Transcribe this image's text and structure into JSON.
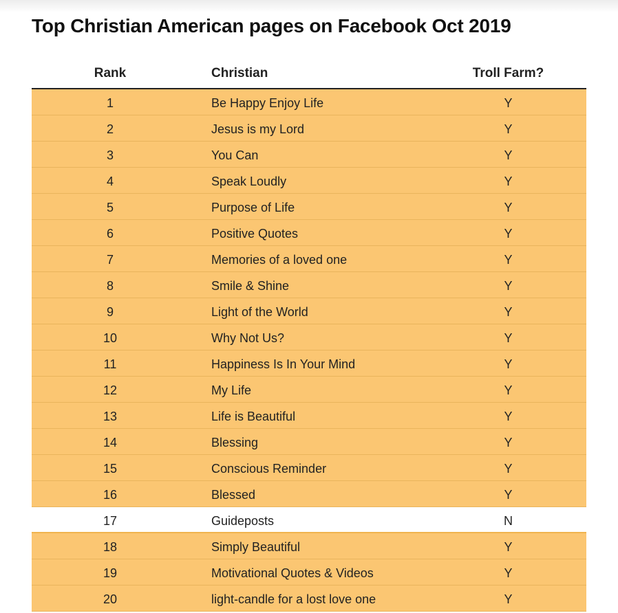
{
  "title": "Top Christian American pages on Facebook Oct 2019",
  "table": {
    "headers": {
      "rank": "Rank",
      "christian": "Christian",
      "troll_farm": "Troll Farm?"
    },
    "rows": [
      {
        "rank": "1",
        "name": "Be Happy Enjoy Life",
        "troll": "Y"
      },
      {
        "rank": "2",
        "name": "Jesus is my Lord",
        "troll": "Y"
      },
      {
        "rank": "3",
        "name": "You Can",
        "troll": "Y"
      },
      {
        "rank": "4",
        "name": "Speak Loudly",
        "troll": "Y"
      },
      {
        "rank": "5",
        "name": "Purpose of Life",
        "troll": "Y"
      },
      {
        "rank": "6",
        "name": "Positive Quotes",
        "troll": "Y"
      },
      {
        "rank": "7",
        "name": "Memories of a loved one",
        "troll": "Y"
      },
      {
        "rank": "8",
        "name": "Smile & Shine",
        "troll": "Y"
      },
      {
        "rank": "9",
        "name": "Light of the World",
        "troll": "Y"
      },
      {
        "rank": "10",
        "name": "Why Not Us?",
        "troll": "Y"
      },
      {
        "rank": "11",
        "name": "Happiness Is In Your Mind",
        "troll": "Y"
      },
      {
        "rank": "12",
        "name": "My Life",
        "troll": "Y"
      },
      {
        "rank": "13",
        "name": "Life is Beautiful",
        "troll": "Y"
      },
      {
        "rank": "14",
        "name": "Blessing",
        "troll": "Y"
      },
      {
        "rank": "15",
        "name": "Conscious Reminder",
        "troll": "Y"
      },
      {
        "rank": "16",
        "name": "Blessed",
        "troll": "Y"
      },
      {
        "rank": "17",
        "name": "Guideposts",
        "troll": "N"
      },
      {
        "rank": "18",
        "name": "Simply Beautiful",
        "troll": "Y"
      },
      {
        "rank": "19",
        "name": "Motivational Quotes & Videos",
        "troll": "Y"
      },
      {
        "rank": "20",
        "name": "light-candle for a lost love one",
        "troll": "Y"
      }
    ]
  },
  "colors": {
    "troll_row_fill": "#fbc672",
    "non_troll_row_fill": "#ffffff",
    "header_rule": "#222222"
  }
}
